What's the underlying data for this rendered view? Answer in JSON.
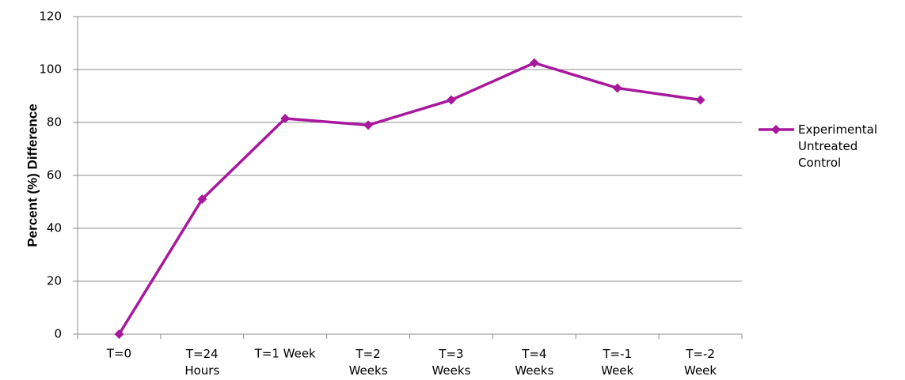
{
  "chart_data": {
    "type": "line",
    "y_label": "Percent (%) Difference",
    "categories": [
      "T=0",
      "T=24\nHours",
      "T=1 Week",
      "T=2\nWeeks",
      "T=3\nWeeks",
      "T=4\nWeeks",
      "T=-1\nWeek",
      "T=-2\nWeek"
    ],
    "series": [
      {
        "name": "Experimental\nUntreated\nControl",
        "color": "#a8189c",
        "values": [
          0,
          51,
          81.5,
          79,
          88.5,
          102.5,
          93,
          88.5
        ]
      }
    ],
    "ylim": [
      0,
      120
    ],
    "yticks": [
      0,
      20,
      40,
      60,
      80,
      100,
      120
    ],
    "grid": true,
    "legend": "right"
  }
}
